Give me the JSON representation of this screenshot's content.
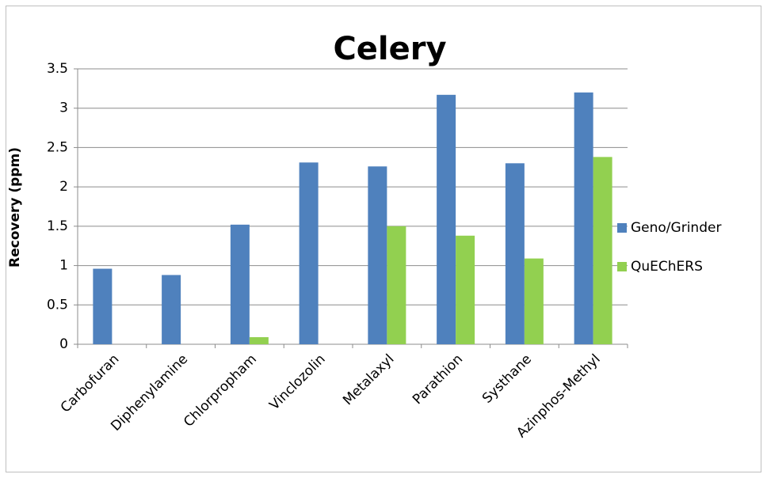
{
  "chart_data": {
    "type": "bar",
    "title": "Celery",
    "y_label": "Recovery (ppm)",
    "categories": [
      "Carbofuran",
      "Diphenylamine",
      "Chlorpropham",
      "Vinclozolin",
      "Metalaxyl",
      "Parathion",
      "Systhane",
      "Azinphos-Methyl"
    ],
    "series": [
      {
        "name": "Geno/Grinder",
        "color": "#4f81bd",
        "values": [
          0.96,
          0.88,
          1.52,
          2.31,
          2.26,
          3.17,
          2.3,
          3.2
        ]
      },
      {
        "name": "QuEChERS",
        "color": "#92d050",
        "values": [
          0,
          0,
          0.09,
          0,
          1.5,
          1.38,
          1.09,
          2.38
        ]
      }
    ],
    "ylim": [
      0,
      3.5
    ],
    "yticks": [
      0,
      0.5,
      1,
      1.5,
      2,
      2.5,
      3,
      3.5
    ],
    "grid": true,
    "legend": "right"
  }
}
